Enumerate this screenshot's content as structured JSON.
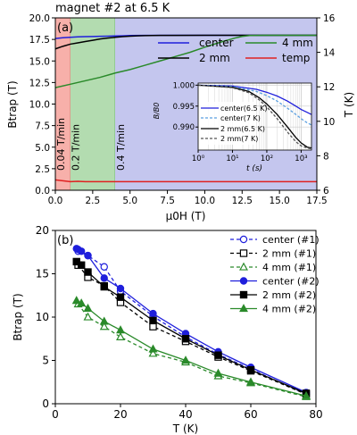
{
  "figure_title": "magnet #2 at 6.5 K",
  "chart_data": [
    {
      "panel": "(a)",
      "type": "line",
      "xlabel": "μ0H (T)",
      "ylabel": "Btrap (T)",
      "y2label": "T (K)",
      "xlim": [
        0,
        17.5
      ],
      "ylim": [
        0,
        20
      ],
      "y2lim": [
        6,
        16
      ],
      "xticks": [
        "0.0",
        "2.5",
        "5.0",
        "7.5",
        "10.0",
        "12.5",
        "15.0",
        "17.5"
      ],
      "yticks": [
        "0.0",
        "2.5",
        "5.0",
        "7.5",
        "10.0",
        "12.5",
        "15.0",
        "17.5",
        "20.0"
      ],
      "y2ticks": [
        "6",
        "8",
        "10",
        "12",
        "14",
        "16"
      ],
      "regions": [
        {
          "from": 0,
          "to": 1.0,
          "label": "0.04 T/min",
          "color": "#f7b0aa",
          "text_color": "#e02020"
        },
        {
          "from": 1.0,
          "to": 4.0,
          "label": "0.2 T/min",
          "color": "#b3dcb0",
          "text_color": "#2a9d2a"
        },
        {
          "from": 4.0,
          "to": 17.5,
          "label": "0.4 T/min",
          "color": "#c4c6ee",
          "text_color": "#3b3bd6"
        }
      ],
      "series": [
        {
          "name": "center",
          "color": "#1f1fdc",
          "axis": "left",
          "x": [
            0,
            0.5,
            1,
            1.5,
            2,
            2.5,
            3,
            3.5,
            4,
            4.5,
            5,
            6,
            8,
            10,
            12,
            14,
            16,
            17.5
          ],
          "y": [
            17.6,
            17.7,
            17.75,
            17.8,
            17.82,
            17.84,
            17.86,
            17.88,
            17.9,
            17.92,
            17.95,
            17.97,
            17.98,
            17.98,
            17.98,
            17.98,
            17.98,
            17.98
          ]
        },
        {
          "name": "2 mm",
          "color": "#000000",
          "axis": "left",
          "x": [
            0,
            0.5,
            1,
            1.5,
            2,
            2.5,
            3,
            3.5,
            4,
            4.5,
            5,
            5.5,
            6,
            7,
            8,
            10,
            12,
            14,
            17.5
          ],
          "y": [
            16.4,
            16.7,
            16.95,
            17.1,
            17.25,
            17.4,
            17.55,
            17.65,
            17.75,
            17.82,
            17.88,
            17.92,
            17.94,
            17.96,
            17.97,
            17.98,
            17.98,
            17.98,
            17.98
          ]
        },
        {
          "name": "4 mm",
          "color": "#2a8a2a",
          "axis": "left",
          "x": [
            0,
            1,
            2,
            3,
            4,
            5,
            6,
            7,
            8,
            9,
            10,
            11,
            12,
            12.5,
            13,
            14,
            15,
            17.5
          ],
          "y": [
            11.9,
            12.3,
            12.7,
            13.1,
            13.6,
            14.0,
            14.5,
            15.0,
            15.5,
            16.0,
            16.6,
            17.15,
            17.65,
            17.85,
            17.95,
            17.98,
            17.98,
            17.98
          ]
        },
        {
          "name": "temp",
          "color": "#e02020",
          "axis": "right",
          "x": [
            0,
            0.5,
            1,
            1.5,
            2,
            4,
            6,
            8,
            10,
            12,
            14,
            16,
            17.5
          ],
          "y": [
            6.6,
            6.55,
            6.5,
            6.52,
            6.5,
            6.5,
            6.5,
            6.5,
            6.5,
            6.5,
            6.5,
            6.5,
            6.5
          ]
        }
      ],
      "inset": {
        "type": "line",
        "xscale": "log",
        "xlabel": "t (s)",
        "ylabel": "B/B0",
        "xlim": [
          1,
          2000
        ],
        "ylim": [
          0.9845,
          1.0005
        ],
        "xticks": [
          "10⁰",
          "10¹",
          "10²",
          "10³"
        ],
        "yticks": [
          "1.000",
          "0.995",
          "0.990"
        ],
        "series": [
          {
            "name": "center(6.5 K)",
            "color": "#1f1fdc",
            "dash": false,
            "x": [
              1,
              10,
              50,
              100,
              200,
              400,
              700,
              1000,
              1500,
              2000
            ],
            "y": [
              1.0,
              0.9998,
              0.999,
              0.9983,
              0.9974,
              0.9962,
              0.995,
              0.9942,
              0.9935,
              0.993
            ]
          },
          {
            "name": "center(7 K)",
            "color": "#5a9fe0",
            "dash": true,
            "x": [
              1,
              10,
              50,
              100,
              200,
              400,
              700,
              1000,
              1500,
              2000
            ],
            "y": [
              1.0,
              0.9997,
              0.9985,
              0.9975,
              0.9962,
              0.9945,
              0.993,
              0.992,
              0.991,
              0.9905
            ]
          },
          {
            "name": "2 mm(6.5 K)",
            "color": "#000000",
            "dash": false,
            "x": [
              1,
              10,
              30,
              60,
              100,
              200,
              400,
              700,
              1000,
              1500,
              2000
            ],
            "y": [
              1.0,
              0.9995,
              0.9985,
              0.997,
              0.9955,
              0.993,
              0.99,
              0.9875,
              0.9862,
              0.9852,
              0.985
            ]
          },
          {
            "name": "2 mm(7 K)",
            "color": "#555555",
            "dash": true,
            "x": [
              1,
              10,
              30,
              60,
              100,
              200,
              400,
              700,
              1000,
              1500,
              2000
            ],
            "y": [
              1.0,
              0.9994,
              0.9982,
              0.9965,
              0.9948,
              0.992,
              0.9888,
              0.9865,
              0.9855,
              0.985,
              0.9848
            ]
          }
        ]
      }
    },
    {
      "panel": "(b)",
      "type": "line",
      "xlabel": "T (K)",
      "ylabel": "Btrap (T)",
      "xlim": [
        0,
        80
      ],
      "ylim": [
        0,
        20
      ],
      "xticks": [
        "0",
        "20",
        "40",
        "60",
        "80"
      ],
      "yticks": [
        "0",
        "5",
        "10",
        "15",
        "20"
      ],
      "series": [
        {
          "name": "center  (#1)",
          "color": "#1f1fdc",
          "dash": true,
          "marker": "circle",
          "filled": false,
          "x": [
            7,
            10,
            15,
            20,
            30,
            40,
            50,
            60,
            77
          ],
          "y": [
            17.6,
            17.1,
            15.8,
            13.0,
            10.1,
            7.7,
            5.7,
            4.0,
            1.1
          ]
        },
        {
          "name": "2 mm  (#1)",
          "color": "#000000",
          "dash": true,
          "marker": "square",
          "filled": false,
          "x": [
            7,
            10,
            15,
            20,
            30,
            40,
            50,
            60,
            77
          ],
          "y": [
            16.0,
            14.6,
            13.6,
            11.7,
            8.9,
            7.2,
            5.4,
            3.8,
            1.1
          ]
        },
        {
          "name": "4 mm  (#1)",
          "color": "#2a8a2a",
          "dash": true,
          "marker": "triangle",
          "filled": false,
          "x": [
            7,
            10,
            15,
            20,
            30,
            40,
            50,
            60,
            77
          ],
          "y": [
            11.5,
            10.0,
            8.9,
            7.7,
            5.8,
            4.8,
            3.2,
            2.4,
            0.8
          ]
        },
        {
          "name": "center  (#2)",
          "color": "#1f1fdc",
          "dash": false,
          "marker": "circle",
          "filled": true,
          "x": [
            6.5,
            7,
            8,
            10,
            15,
            20,
            30,
            40,
            50,
            60,
            77
          ],
          "y": [
            17.9,
            17.8,
            17.6,
            17.1,
            14.5,
            13.3,
            10.4,
            8.1,
            6.0,
            4.2,
            1.3
          ]
        },
        {
          "name": "2 mm  (#2)",
          "color": "#000000",
          "dash": false,
          "marker": "square",
          "filled": true,
          "x": [
            6.5,
            8,
            10,
            15,
            20,
            30,
            40,
            50,
            60,
            77
          ],
          "y": [
            16.4,
            16.0,
            15.2,
            13.5,
            12.3,
            9.6,
            7.5,
            5.6,
            3.9,
            1.2
          ]
        },
        {
          "name": "4 mm  (#2)",
          "color": "#2a8a2a",
          "dash": false,
          "marker": "triangle",
          "filled": true,
          "x": [
            6.5,
            8,
            10,
            15,
            20,
            30,
            40,
            50,
            60,
            77
          ],
          "y": [
            11.9,
            11.6,
            11.0,
            9.5,
            8.5,
            6.3,
            5.0,
            3.5,
            2.5,
            0.9
          ]
        }
      ]
    }
  ]
}
